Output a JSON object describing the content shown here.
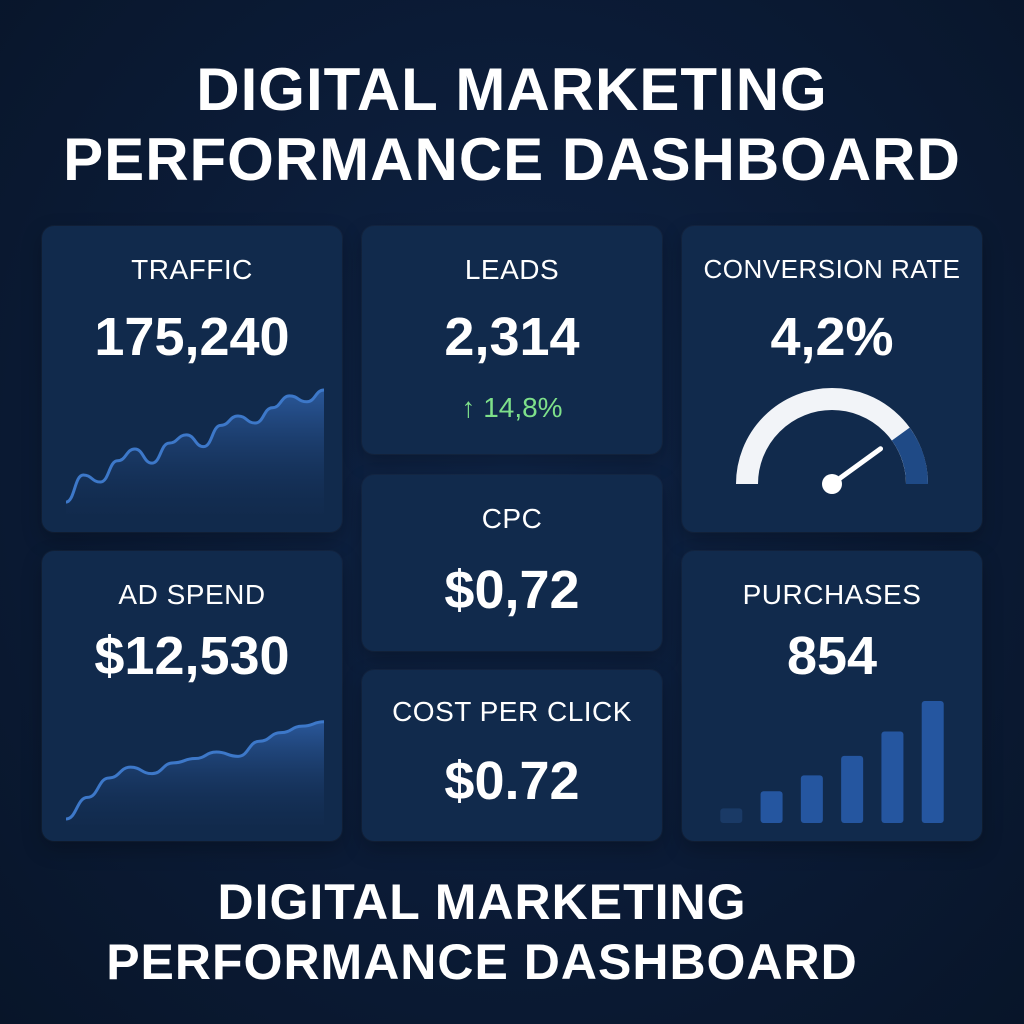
{
  "title": {
    "line1": "DIGITAL MARKETING",
    "line2": "PERFORMANCE DASHBOARD"
  },
  "footer_title": {
    "line1": "DIGITAL MARKETING",
    "line2": "PERFORMANCE DASHBOARD"
  },
  "cards": {
    "traffic": {
      "label": "TRAFFIC",
      "value": "175,240",
      "trend": [
        0.05,
        0.28,
        0.22,
        0.4,
        0.5,
        0.38,
        0.55,
        0.62,
        0.52,
        0.7,
        0.78,
        0.72,
        0.85,
        0.95,
        0.9,
        1.0
      ]
    },
    "leads": {
      "label": "LEADS",
      "value": "2,314",
      "change": "14,8%",
      "change_icon": "arrow-up-icon"
    },
    "conversion_rate": {
      "label": "CONVERSION RATE",
      "value": "4,2%",
      "gauge_level": 0.8
    },
    "ad_spend": {
      "label": "AD SPEND",
      "value": "$12,530",
      "trend": [
        0.0,
        0.2,
        0.38,
        0.48,
        0.42,
        0.52,
        0.56,
        0.62,
        0.58,
        0.72,
        0.8,
        0.86,
        0.9
      ]
    },
    "cpc": {
      "label": "CPC",
      "value": "$0,72"
    },
    "cost_per_click": {
      "label": "COST PER CLICK",
      "value": "$0.72"
    },
    "purchases": {
      "label": "PURCHASES",
      "value": "854",
      "bars": [
        0.12,
        0.26,
        0.39,
        0.55,
        0.75,
        1.0
      ]
    }
  },
  "colors": {
    "background": "#0b1b36",
    "card": "#112a4c",
    "accent": "#2d6bbd",
    "positive": "#7ee08a"
  }
}
